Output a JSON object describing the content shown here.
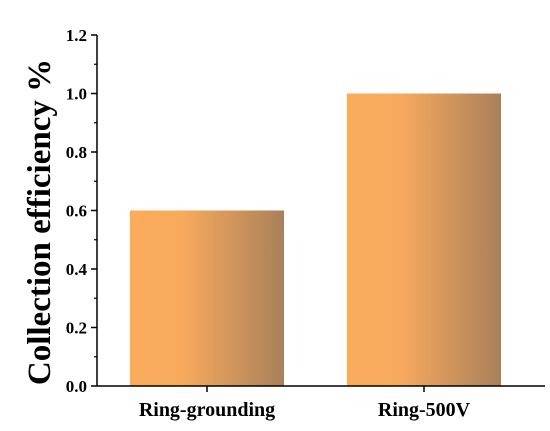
{
  "chart_data": {
    "type": "bar",
    "title": "",
    "xlabel": "",
    "ylabel": "Collection efficiency %",
    "categories": [
      "Ring-grounding",
      "Ring-500V"
    ],
    "values": [
      0.6,
      1.0
    ],
    "ylim": [
      0.0,
      1.2
    ],
    "yticks": [
      "0.0",
      "0.2",
      "0.4",
      "0.6",
      "0.8",
      "1.0",
      "1.2"
    ],
    "grid": false,
    "legend": "none",
    "bar_gradient": [
      "#fbab5c",
      "#a9805a"
    ]
  }
}
